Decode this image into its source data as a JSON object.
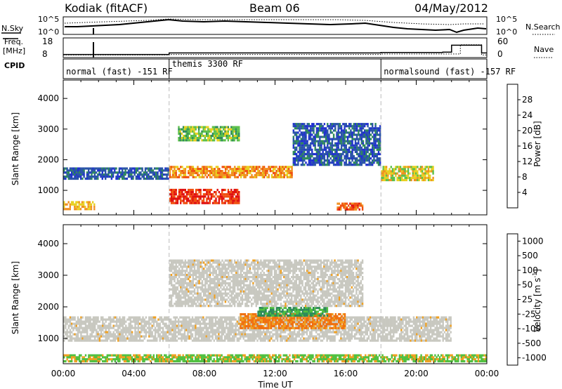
{
  "header": {
    "station": "Kodiak (fitACF)",
    "beam": "Beam 06",
    "date": "04/May/2012"
  },
  "param_labels": {
    "nsky": "N.Sky",
    "nsearch": "N.Search",
    "freq_line1": "Freq.",
    "freq_line2": "[MHz]",
    "nave": "Nave",
    "cpid": "CPID",
    "noise_ticks": [
      "10^5",
      "10^0"
    ],
    "freq_ticks": [
      "18",
      "8"
    ],
    "nave_ticks": [
      "60",
      "0"
    ]
  },
  "modes": [
    {
      "label": "normal (fast) -151 RF",
      "start_hour": 0.0
    },
    {
      "label": "themis 3300 RF",
      "start_hour": 6.0
    },
    {
      "label": "normalsound (fast) -157 RF",
      "start_hour": 18.0
    }
  ],
  "axes": {
    "x_ticks": [
      "00:00",
      "04:00",
      "08:00",
      "12:00",
      "16:00",
      "20:00",
      "00:00"
    ],
    "x_range_hours": [
      0,
      24
    ],
    "xlabel": "Time UT",
    "ylabel": "Slant Range [km]",
    "y_ticks": [
      "1000",
      "2000",
      "3000",
      "4000"
    ],
    "y_range_km": [
      200,
      4600
    ]
  },
  "colorbars": {
    "power": {
      "label": "Power [dB]",
      "ticks": [
        "4",
        "8",
        "12",
        "16",
        "20",
        "24",
        "28"
      ],
      "colors": [
        "#2030d0",
        "#2a54a8",
        "#2e8a5a",
        "#5cc04a",
        "#e8d020",
        "#f09020",
        "#f05010",
        "#e01010"
      ]
    },
    "velocity": {
      "label_main": "Velocity  [m s",
      "label_sup": "-1",
      "label_close": "]",
      "ticks": [
        "1000",
        "500",
        "100",
        "50",
        "25",
        "-25",
        "-100",
        "-500",
        "-1000"
      ],
      "colors": [
        "#1a30c0",
        "#2a6aa0",
        "#2e8a5a",
        "#50c040",
        "#c8c8c0",
        "#f0a020",
        "#f07010",
        "#f03010",
        "#e01010"
      ]
    }
  },
  "chart_data": {
    "type": "heatmap",
    "title": "Kodiak (fitACF)  Beam 06  04/May/2012",
    "xlabel": "Time UT",
    "ylabel": "Slant Range [km]",
    "xlim_hours": [
      0,
      24
    ],
    "ylim_km": [
      200,
      4600
    ],
    "grid": false,
    "power_db_regions": [
      {
        "t": [
          0,
          6
        ],
        "range_km": [
          1350,
          1750
        ],
        "power_db": 6
      },
      {
        "t": [
          0,
          1.8
        ],
        "range_km": [
          350,
          650
        ],
        "power_db": 20
      },
      {
        "t": [
          6,
          10
        ],
        "range_km": [
          550,
          1050
        ],
        "power_db": 28
      },
      {
        "t": [
          6,
          13
        ],
        "range_km": [
          1400,
          1800
        ],
        "power_db": 22
      },
      {
        "t": [
          6.5,
          10
        ],
        "range_km": [
          2600,
          3100
        ],
        "power_db": 14
      },
      {
        "t": [
          15.5,
          17
        ],
        "range_km": [
          350,
          600
        ],
        "power_db": 26
      },
      {
        "t": [
          18,
          21
        ],
        "range_km": [
          1300,
          1800
        ],
        "power_db": 18
      },
      {
        "t": [
          13,
          18
        ],
        "range_km": [
          1800,
          3200
        ],
        "power_db": 6
      }
    ],
    "velocity_ms_regions": [
      {
        "t": [
          0,
          22
        ],
        "range_km": [
          900,
          1700
        ],
        "velocity_ms": 0
      },
      {
        "t": [
          10,
          16
        ],
        "range_km": [
          1300,
          1800
        ],
        "velocity_ms": -100
      },
      {
        "t": [
          11,
          15
        ],
        "range_km": [
          1700,
          2000
        ],
        "velocity_ms": 100
      },
      {
        "t": [
          6,
          17
        ],
        "range_km": [
          2000,
          3500
        ],
        "velocity_ms": 0
      },
      {
        "t": [
          0,
          24
        ],
        "range_km": [
          250,
          500
        ],
        "velocity_ms": 50
      }
    ],
    "freq_mhz": {
      "hours": [
        0,
        6,
        18,
        21.5,
        22,
        23.7,
        24
      ],
      "values": [
        10,
        11,
        11.3,
        11.5,
        16,
        11,
        11
      ]
    },
    "nave": {
      "hours": [
        0,
        6,
        18,
        21.5,
        22.5,
        23.7,
        24
      ],
      "values": [
        10,
        12,
        14,
        14,
        50,
        10,
        25
      ]
    }
  }
}
